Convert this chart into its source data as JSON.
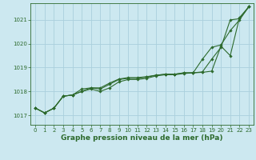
{
  "title": "Graphe pression niveau de la mer (hPa)",
  "bg_color": "#cce8f0",
  "grid_color": "#aad0dc",
  "line_color": "#2d6a2d",
  "xlim": [
    -0.5,
    23.5
  ],
  "ylim": [
    1016.6,
    1021.7
  ],
  "yticks": [
    1017,
    1018,
    1019,
    1020,
    1021
  ],
  "xticks": [
    0,
    1,
    2,
    3,
    4,
    5,
    6,
    7,
    8,
    9,
    10,
    11,
    12,
    13,
    14,
    15,
    16,
    17,
    18,
    19,
    20,
    21,
    22,
    23
  ],
  "series": [
    [
      1017.3,
      1017.1,
      1017.3,
      1017.8,
      1017.85,
      1018.0,
      1018.1,
      1018.0,
      1018.15,
      1018.4,
      1018.5,
      1018.5,
      1018.55,
      1018.65,
      1018.7,
      1018.7,
      1018.75,
      1018.78,
      1018.8,
      1018.85,
      1019.9,
      1019.5,
      1021.1,
      1021.55
    ],
    [
      1017.3,
      1017.1,
      1017.3,
      1017.8,
      1017.85,
      1018.1,
      1018.15,
      1018.1,
      1018.3,
      1018.5,
      1018.55,
      1018.55,
      1018.6,
      1018.68,
      1018.72,
      1018.72,
      1018.78,
      1018.78,
      1018.82,
      1019.35,
      1019.85,
      1021.0,
      1021.05,
      1021.55
    ],
    [
      1017.3,
      1017.1,
      1017.3,
      1017.8,
      1017.85,
      1018.0,
      1018.15,
      1018.15,
      1018.35,
      1018.52,
      1018.58,
      1018.58,
      1018.62,
      1018.68,
      1018.72,
      1018.72,
      1018.78,
      1018.78,
      1019.35,
      1019.85,
      1019.95,
      1020.55,
      1021.0,
      1021.55
    ]
  ],
  "title_fontsize": 6.5,
  "tick_fontsize": 5.0
}
